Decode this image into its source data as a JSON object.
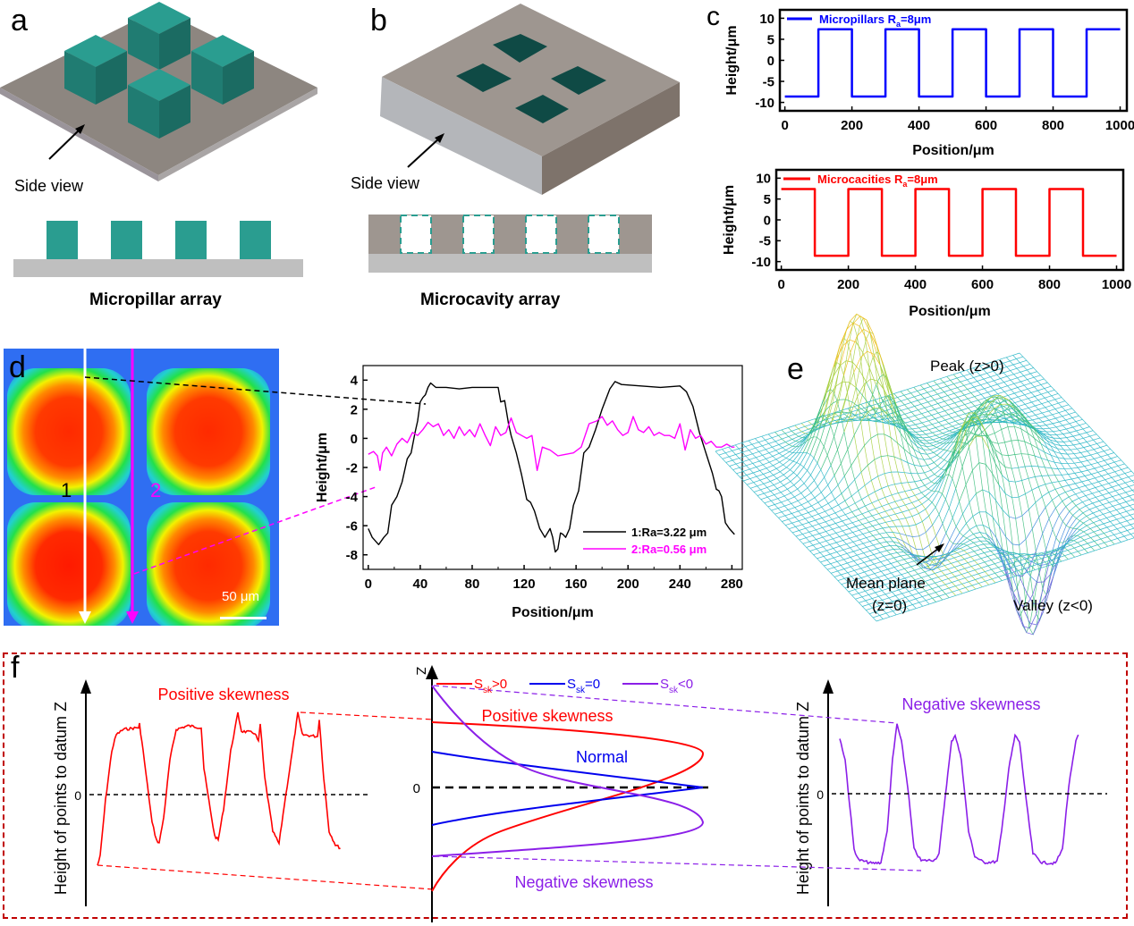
{
  "panels": {
    "a": {
      "letter": "a",
      "side_view_label": "Side view",
      "caption": "Micropillar array",
      "pillar_count": 4,
      "colors": {
        "pillar": "#2a9d90",
        "pillar_dark": "#1f7268",
        "pillar_top": "#35a898",
        "base": "#8d8680",
        "base_side": "#bfbfbf"
      }
    },
    "b": {
      "letter": "b",
      "side_view_label": "Side view",
      "caption": "Microcavity array",
      "cavity_count": 4,
      "colors": {
        "block_top": "#9e9690",
        "block_left": "#b4b6ba",
        "block_right": "#7e736b",
        "cavity": "#0f4a45",
        "dash": "#2a9d90",
        "base": "#bfbfbf"
      }
    },
    "c": {
      "letter": "c"
    },
    "d": {
      "letter": "d",
      "line1_label": "1",
      "line2_label": "2",
      "scale_bar_label": "50 μm",
      "colors": {
        "line1": "#ffffff",
        "line2": "#ff00ff"
      }
    },
    "e": {
      "letter": "e",
      "peak_label": "Peak (z>0)",
      "mean_plane_label_1": "Mean plane",
      "mean_plane_label_2": "(z=0)",
      "valley_label": "Valley (z<0)"
    },
    "f": {
      "letter": "f",
      "left": {
        "ylabel": "Height of points to datum Z",
        "zero_label": "0",
        "title": "Positive skewness",
        "color": "#ff0000"
      },
      "middle": {
        "axis_label": "Z",
        "zero_label": "0",
        "legend": [
          {
            "main": "S",
            "sub": "sk",
            "rest": ">0",
            "color": "#ff0000"
          },
          {
            "main": "S",
            "sub": "sk",
            "rest": "=0",
            "color": "#0000ee"
          },
          {
            "main": "S",
            "sub": "sk",
            "rest": "<0",
            "color": "#8b1fe8"
          }
        ],
        "positive_label": "Positive skewness",
        "normal_label": "Normal",
        "negative_label": "Negative skewness"
      },
      "right": {
        "ylabel": "Height of points to datum Z",
        "zero_label": "0",
        "title": "Negative skewness",
        "color": "#8b1fe8"
      },
      "border_color": "#c00000"
    }
  },
  "chart_data": [
    {
      "id": "c-top",
      "type": "line",
      "title": "",
      "legend": [
        {
          "text": "Micropillars R",
          "sub": "a",
          "rest": "=8μm"
        }
      ],
      "xlabel": "Position/μm",
      "ylabel": "Height/μm",
      "xlim": [
        -15,
        1020
      ],
      "ylim": [
        -12,
        12
      ],
      "xticks": [
        0,
        200,
        400,
        600,
        800,
        1000
      ],
      "yticks": [
        10,
        5,
        0,
        -5,
        -10
      ],
      "color": "#0000ff",
      "series": [
        {
          "name": "Micropillars Ra=8μm",
          "x": [
            0,
            100,
            100,
            200,
            200,
            300,
            300,
            400,
            400,
            500,
            500,
            600,
            600,
            700,
            700,
            800,
            800,
            900,
            900,
            1000
          ],
          "y": [
            -8.6,
            -8.6,
            7.4,
            7.4,
            -8.6,
            -8.6,
            7.4,
            7.4,
            -8.6,
            -8.6,
            7.4,
            7.4,
            -8.6,
            -8.6,
            7.4,
            7.4,
            -8.6,
            -8.6,
            7.4,
            7.4
          ]
        }
      ]
    },
    {
      "id": "c-bottom",
      "type": "line",
      "title": "",
      "legend": [
        {
          "text": "Microcacities R",
          "sub": "a",
          "rest": "=8μm"
        }
      ],
      "xlabel": "Position/μm",
      "ylabel": "Height/μm",
      "xlim": [
        -15,
        1020
      ],
      "ylim": [
        -12,
        12
      ],
      "xticks": [
        0,
        200,
        400,
        600,
        800,
        1000
      ],
      "yticks": [
        10,
        5,
        0,
        -5,
        -10
      ],
      "color": "#ff0000",
      "series": [
        {
          "name": "Microcacities Ra=8μm",
          "x": [
            0,
            100,
            100,
            200,
            200,
            300,
            300,
            400,
            400,
            500,
            500,
            600,
            600,
            700,
            700,
            800,
            800,
            900,
            900,
            1000
          ],
          "y": [
            7.4,
            7.4,
            -8.6,
            -8.6,
            7.4,
            7.4,
            -8.6,
            -8.6,
            7.4,
            7.4,
            -8.6,
            -8.6,
            7.4,
            7.4,
            -8.6,
            -8.6,
            7.4,
            7.4,
            -8.6,
            -8.6
          ]
        }
      ]
    },
    {
      "id": "d-profile",
      "type": "line",
      "title": "",
      "xlabel": "Position/μm",
      "ylabel": "Height/μm",
      "xlim": [
        -4,
        288
      ],
      "ylim": [
        -9,
        5
      ],
      "xticks": [
        0,
        40,
        80,
        120,
        160,
        200,
        240,
        280
      ],
      "yticks": [
        4,
        2,
        0,
        -2,
        -4,
        -6,
        -8
      ],
      "legend_position": "bottom-right",
      "series": [
        {
          "name": "1:Ra=3.22 μm",
          "color": "#000000",
          "x": [
            0,
            3,
            8,
            12,
            15,
            18,
            22,
            26,
            30,
            33,
            36,
            38,
            40,
            42,
            44,
            46,
            48,
            52,
            60,
            70,
            80,
            85,
            95,
            100,
            102,
            105,
            108,
            110,
            114,
            118,
            122,
            125,
            128,
            132,
            136,
            140,
            142,
            144,
            146,
            148,
            150,
            152,
            155,
            158,
            162,
            166,
            170,
            175,
            180,
            186,
            190,
            195,
            210,
            225,
            240,
            245,
            250,
            255,
            260,
            265,
            268,
            270,
            272,
            275,
            278,
            282
          ],
          "y": [
            -6.2,
            -6.8,
            -7.3,
            -6.8,
            -6.5,
            -4.6,
            -4.0,
            -3.0,
            -1.4,
            -1.0,
            0.4,
            1.2,
            2.5,
            2.8,
            3.0,
            3.5,
            3.8,
            3.5,
            3.5,
            3.4,
            3.5,
            3.5,
            3.5,
            3.5,
            2.5,
            2.6,
            1.0,
            0.2,
            -1.0,
            -2.5,
            -4.2,
            -4.4,
            -5.0,
            -6.2,
            -6.8,
            -6.2,
            -6.8,
            -7.8,
            -7.6,
            -6.5,
            -6.6,
            -6.8,
            -6.2,
            -4.6,
            -3.6,
            -1.0,
            -0.6,
            0.6,
            2.0,
            3.4,
            3.9,
            3.7,
            3.6,
            3.5,
            3.6,
            3.2,
            2.2,
            0.4,
            -1.0,
            -2.4,
            -3.5,
            -3.6,
            -4.0,
            -5.8,
            -6.2,
            -6.6
          ]
        },
        {
          "name": "2:Ra=0.56 μm",
          "color": "#ff00ff",
          "x": [
            0,
            4,
            7,
            9,
            11,
            14,
            18,
            22,
            26,
            30,
            34,
            38,
            42,
            46,
            50,
            54,
            58,
            62,
            66,
            70,
            74,
            78,
            82,
            86,
            90,
            94,
            98,
            102,
            106,
            110,
            114,
            118,
            122,
            126,
            130,
            134,
            140,
            146,
            152,
            158,
            164,
            170,
            176,
            180,
            184,
            188,
            192,
            196,
            200,
            204,
            208,
            212,
            216,
            220,
            224,
            228,
            232,
            236,
            240,
            244,
            248,
            252,
            256,
            260,
            264,
            268,
            272,
            276,
            280,
            282
          ],
          "y": [
            -1.1,
            -0.9,
            -1.2,
            -2.2,
            -1.0,
            -0.6,
            -1.2,
            -0.4,
            0.0,
            -0.3,
            0.4,
            0.2,
            0.6,
            1.1,
            0.8,
            1.0,
            0.2,
            0.6,
            0.0,
            0.8,
            0.2,
            0.6,
            0.1,
            1.0,
            0.2,
            -0.5,
            0.8,
            0.2,
            0.4,
            1.4,
            0.4,
            0.2,
            0.0,
            0.2,
            -2.2,
            -0.6,
            -0.8,
            -1.2,
            -1.1,
            -1.0,
            -0.6,
            1.0,
            1.2,
            1.5,
            0.9,
            1.2,
            0.6,
            0.2,
            0.4,
            1.5,
            0.6,
            0.4,
            0.8,
            0.2,
            0.4,
            0.2,
            0.2,
            0.0,
            1.0,
            -0.8,
            0.6,
            0.0,
            0.2,
            -0.4,
            -0.2,
            -0.6,
            -0.6,
            -0.4,
            -0.6,
            -0.6
          ]
        }
      ]
    }
  ]
}
